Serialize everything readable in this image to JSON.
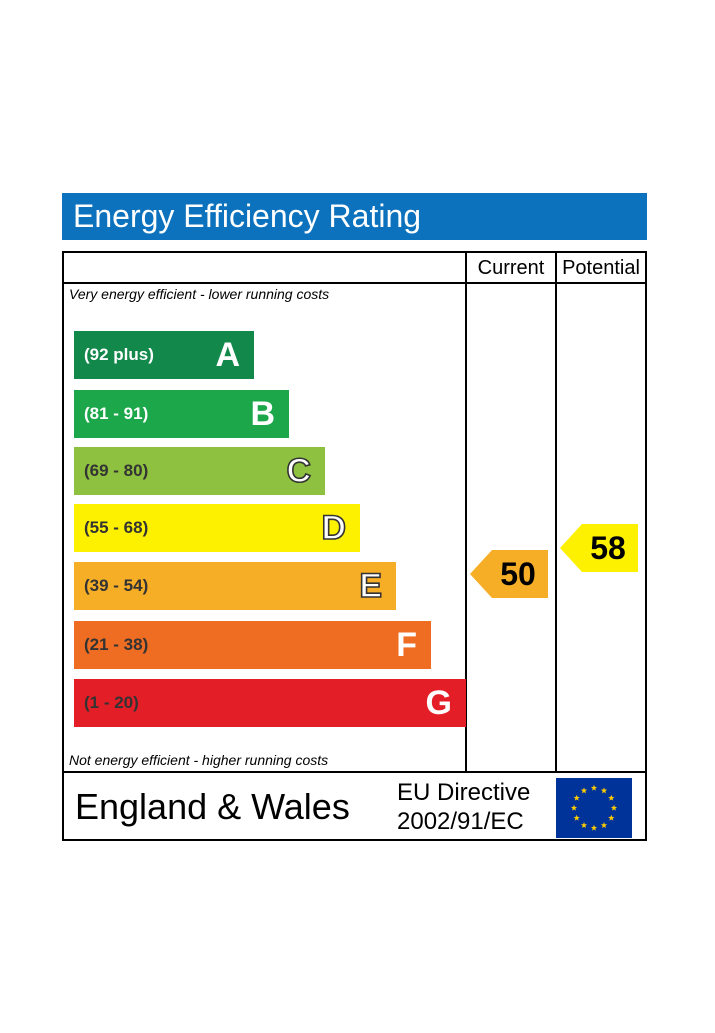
{
  "chart_data": {
    "type": "bar",
    "title": "Energy Efficiency Rating",
    "columns": [
      "Current",
      "Potential"
    ],
    "top_note": "Very energy efficient - lower running costs",
    "bottom_note": "Not energy efficient - higher running costs",
    "bands": [
      {
        "range": "(92 plus)",
        "letter": "A",
        "color": "#13884b",
        "range_color": "#ffffff",
        "outline": false
      },
      {
        "range": "(81 - 91)",
        "letter": "B",
        "color": "#1ba74a",
        "range_color": "#ffffff",
        "outline": false
      },
      {
        "range": "(69 - 80)",
        "letter": "C",
        "color": "#8dc13f",
        "range_color": "#333333",
        "outline": true
      },
      {
        "range": "(55 - 68)",
        "letter": "D",
        "color": "#fdf100",
        "range_color": "#333333",
        "outline": true
      },
      {
        "range": "(39 - 54)",
        "letter": "E",
        "color": "#f7ae27",
        "range_color": "#333333",
        "outline": true
      },
      {
        "range": "(21 - 38)",
        "letter": "F",
        "color": "#ef6d22",
        "range_color": "#333333",
        "outline": false
      },
      {
        "range": "(1 - 20)",
        "letter": "G",
        "color": "#e41e26",
        "range_color": "#333333",
        "outline": false
      }
    ],
    "current": {
      "value": 50,
      "color": "#f7ae27"
    },
    "potential": {
      "value": 58,
      "color": "#fdf100"
    }
  },
  "footer": {
    "region": "England & Wales",
    "directive_line1": "EU Directive",
    "directive_line2": "2002/91/EC",
    "flag_icon": "eu-flag-icon",
    "flag_color": "#003399",
    "star_color": "#ffcc00"
  }
}
